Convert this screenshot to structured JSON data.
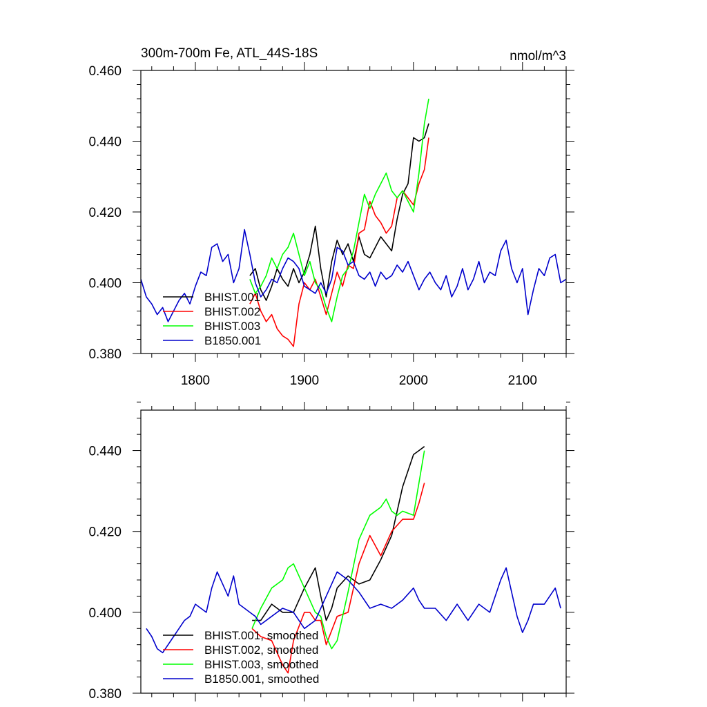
{
  "chart_data": [
    {
      "type": "line",
      "title": "300m-700m Fe, ATL_44S-18S",
      "units": "nmol/m^3",
      "xlim": [
        1750,
        2140
      ],
      "ylim": [
        0.38,
        0.46
      ],
      "xticks": [
        1800,
        1900,
        2000,
        2100
      ],
      "xtick_labels": [
        "1800",
        "1900",
        "2000",
        "2100"
      ],
      "yticks": [
        0.38,
        0.4,
        0.42,
        0.44,
        0.46
      ],
      "ytick_labels": [
        "0.380",
        "0.400",
        "0.420",
        "0.440",
        "0.460"
      ],
      "grid": false,
      "legend_position": "bottom-left",
      "series": [
        {
          "name": "BHIST.001",
          "color": "#000000",
          "x": [
            1850,
            1855,
            1860,
            1865,
            1870,
            1875,
            1880,
            1885,
            1890,
            1895,
            1900,
            1905,
            1910,
            1915,
            1920,
            1925,
            1930,
            1935,
            1940,
            1945,
            1950,
            1955,
            1960,
            1965,
            1970,
            1975,
            1980,
            1985,
            1990,
            1995,
            2000,
            2005,
            2010,
            2014
          ],
          "y": [
            0.402,
            0.404,
            0.398,
            0.395,
            0.399,
            0.404,
            0.401,
            0.399,
            0.404,
            0.4,
            0.403,
            0.408,
            0.416,
            0.404,
            0.396,
            0.406,
            0.412,
            0.408,
            0.411,
            0.406,
            0.413,
            0.408,
            0.407,
            0.41,
            0.413,
            0.411,
            0.409,
            0.418,
            0.425,
            0.428,
            0.441,
            0.44,
            0.441,
            0.445
          ]
        },
        {
          "name": "BHIST.002",
          "color": "#ff0000",
          "x": [
            1850,
            1855,
            1860,
            1865,
            1870,
            1875,
            1880,
            1885,
            1890,
            1895,
            1900,
            1905,
            1910,
            1915,
            1920,
            1925,
            1930,
            1935,
            1940,
            1945,
            1950,
            1955,
            1960,
            1965,
            1970,
            1975,
            1980,
            1985,
            1990,
            1995,
            2000,
            2005,
            2010,
            2014
          ],
          "y": [
            0.394,
            0.397,
            0.392,
            0.389,
            0.391,
            0.387,
            0.385,
            0.384,
            0.382,
            0.394,
            0.4,
            0.398,
            0.401,
            0.396,
            0.391,
            0.397,
            0.403,
            0.399,
            0.405,
            0.404,
            0.414,
            0.415,
            0.423,
            0.419,
            0.417,
            0.414,
            0.416,
            0.424,
            0.426,
            0.424,
            0.422,
            0.428,
            0.432,
            0.441
          ]
        },
        {
          "name": "BHIST.003",
          "color": "#00ff00",
          "x": [
            1850,
            1855,
            1860,
            1865,
            1870,
            1875,
            1880,
            1885,
            1890,
            1895,
            1900,
            1905,
            1910,
            1915,
            1920,
            1925,
            1930,
            1935,
            1940,
            1945,
            1950,
            1955,
            1960,
            1965,
            1970,
            1975,
            1980,
            1985,
            1990,
            1995,
            2000,
            2005,
            2010,
            2014
          ],
          "y": [
            0.401,
            0.397,
            0.399,
            0.402,
            0.407,
            0.404,
            0.408,
            0.41,
            0.414,
            0.408,
            0.402,
            0.406,
            0.4,
            0.398,
            0.393,
            0.389,
            0.396,
            0.402,
            0.404,
            0.409,
            0.417,
            0.425,
            0.421,
            0.425,
            0.428,
            0.431,
            0.426,
            0.424,
            0.426,
            0.423,
            0.42,
            0.431,
            0.445,
            0.452
          ]
        },
        {
          "name": "B1850.001",
          "color": "#0000cc",
          "x": [
            1750,
            1755,
            1760,
            1765,
            1770,
            1775,
            1780,
            1785,
            1790,
            1795,
            1800,
            1805,
            1810,
            1815,
            1820,
            1825,
            1830,
            1835,
            1840,
            1845,
            1850,
            1855,
            1860,
            1865,
            1870,
            1875,
            1880,
            1885,
            1890,
            1895,
            1900,
            1905,
            1910,
            1915,
            1920,
            1925,
            1930,
            1935,
            1940,
            1945,
            1950,
            1955,
            1960,
            1965,
            1970,
            1975,
            1980,
            1985,
            1990,
            1995,
            2000,
            2005,
            2010,
            2015,
            2020,
            2025,
            2030,
            2035,
            2040,
            2045,
            2050,
            2055,
            2060,
            2065,
            2070,
            2075,
            2080,
            2085,
            2090,
            2095,
            2100,
            2105,
            2110,
            2115,
            2120,
            2125,
            2130,
            2135,
            2140
          ],
          "y": [
            0.401,
            0.396,
            0.394,
            0.391,
            0.393,
            0.389,
            0.392,
            0.395,
            0.397,
            0.394,
            0.399,
            0.403,
            0.402,
            0.41,
            0.411,
            0.406,
            0.408,
            0.4,
            0.404,
            0.415,
            0.408,
            0.4,
            0.396,
            0.398,
            0.401,
            0.4,
            0.404,
            0.407,
            0.406,
            0.404,
            0.399,
            0.398,
            0.397,
            0.4,
            0.397,
            0.401,
            0.41,
            0.409,
            0.405,
            0.406,
            0.402,
            0.401,
            0.403,
            0.399,
            0.403,
            0.401,
            0.402,
            0.405,
            0.403,
            0.406,
            0.402,
            0.398,
            0.401,
            0.403,
            0.4,
            0.398,
            0.402,
            0.396,
            0.399,
            0.404,
            0.398,
            0.401,
            0.406,
            0.4,
            0.403,
            0.402,
            0.409,
            0.412,
            0.404,
            0.4,
            0.404,
            0.391,
            0.398,
            0.404,
            0.402,
            0.407,
            0.408,
            0.4,
            0.401
          ]
        }
      ]
    },
    {
      "type": "line",
      "xlim": [
        1750,
        2140
      ],
      "ylim": [
        0.38,
        0.45
      ],
      "xticks": [
        1800,
        1900,
        2000,
        2100
      ],
      "yticks": [
        0.38,
        0.4,
        0.42,
        0.44
      ],
      "ytick_labels": [
        "0.380",
        "0.400",
        "0.420",
        "0.440"
      ],
      "grid": false,
      "legend_position": "bottom-left",
      "series": [
        {
          "name": "BHIST.001, smoothed",
          "color": "#000000",
          "x": [
            1852,
            1860,
            1870,
            1880,
            1890,
            1900,
            1910,
            1915,
            1920,
            1925,
            1930,
            1940,
            1950,
            1960,
            1970,
            1980,
            1990,
            2000,
            2005,
            2010
          ],
          "y": [
            0.398,
            0.398,
            0.402,
            0.4,
            0.4,
            0.406,
            0.411,
            0.404,
            0.398,
            0.401,
            0.406,
            0.409,
            0.407,
            0.408,
            0.413,
            0.419,
            0.431,
            0.439,
            0.44,
            0.441
          ]
        },
        {
          "name": "BHIST.002, smoothed",
          "color": "#ff0000",
          "x": [
            1852,
            1860,
            1870,
            1880,
            1885,
            1890,
            1900,
            1905,
            1910,
            1915,
            1920,
            1930,
            1940,
            1950,
            1960,
            1970,
            1980,
            1990,
            2000,
            2005,
            2010
          ],
          "y": [
            0.396,
            0.394,
            0.393,
            0.387,
            0.385,
            0.393,
            0.4,
            0.4,
            0.398,
            0.398,
            0.392,
            0.399,
            0.4,
            0.412,
            0.419,
            0.414,
            0.42,
            0.423,
            0.423,
            0.427,
            0.432
          ]
        },
        {
          "name": "BHIST.003, smoothed",
          "color": "#00ff00",
          "x": [
            1852,
            1860,
            1870,
            1880,
            1885,
            1890,
            1900,
            1905,
            1910,
            1915,
            1920,
            1925,
            1930,
            1940,
            1950,
            1960,
            1970,
            1975,
            1980,
            1985,
            1990,
            2000,
            2005,
            2010
          ],
          "y": [
            0.396,
            0.401,
            0.406,
            0.408,
            0.411,
            0.412,
            0.406,
            0.403,
            0.4,
            0.399,
            0.394,
            0.391,
            0.393,
            0.405,
            0.418,
            0.424,
            0.426,
            0.428,
            0.425,
            0.424,
            0.425,
            0.424,
            0.432,
            0.44
          ]
        },
        {
          "name": "B1850.001, smoothed",
          "color": "#0000cc",
          "x": [
            1755,
            1760,
            1765,
            1770,
            1780,
            1790,
            1795,
            1800,
            1810,
            1815,
            1820,
            1825,
            1830,
            1835,
            1840,
            1845,
            1850,
            1855,
            1860,
            1870,
            1880,
            1890,
            1900,
            1910,
            1920,
            1930,
            1940,
            1950,
            1960,
            1970,
            1980,
            1990,
            2000,
            2005,
            2010,
            2020,
            2030,
            2040,
            2050,
            2060,
            2070,
            2080,
            2085,
            2090,
            2095,
            2100,
            2105,
            2110,
            2120,
            2130,
            2135
          ],
          "y": [
            0.396,
            0.394,
            0.391,
            0.39,
            0.394,
            0.398,
            0.399,
            0.402,
            0.4,
            0.406,
            0.41,
            0.407,
            0.404,
            0.409,
            0.402,
            0.401,
            0.4,
            0.399,
            0.397,
            0.399,
            0.401,
            0.4,
            0.396,
            0.398,
            0.404,
            0.41,
            0.408,
            0.405,
            0.401,
            0.402,
            0.401,
            0.403,
            0.406,
            0.403,
            0.401,
            0.401,
            0.398,
            0.402,
            0.398,
            0.402,
            0.4,
            0.408,
            0.411,
            0.405,
            0.399,
            0.395,
            0.398,
            0.402,
            0.402,
            0.406,
            0.401
          ]
        }
      ]
    }
  ]
}
